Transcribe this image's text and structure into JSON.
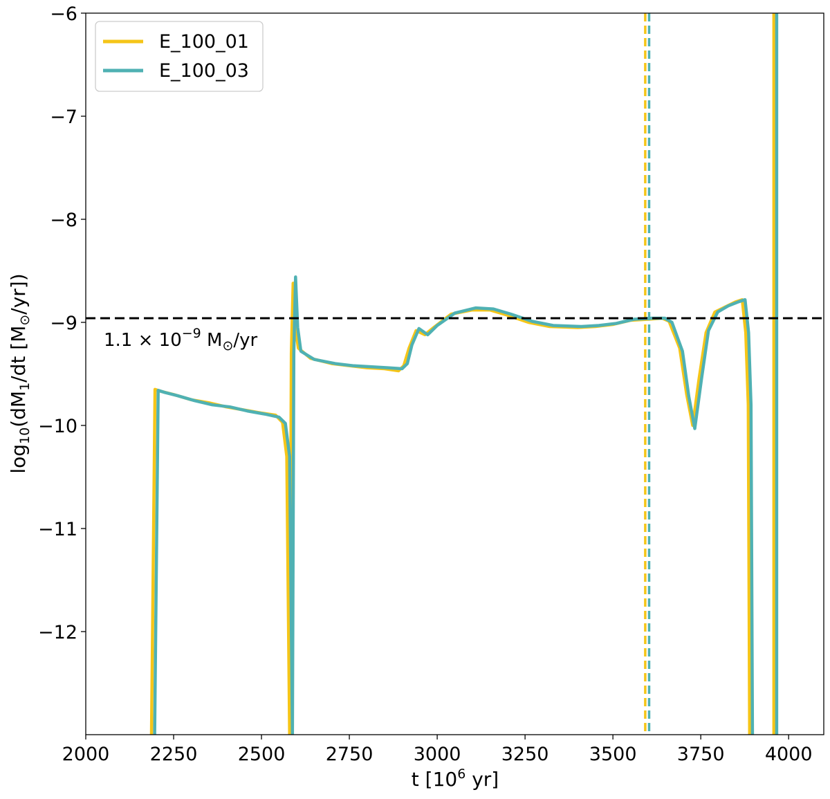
{
  "chart_data": {
    "type": "line",
    "xlabel_main": "t [10",
    "xlabel_sup": "6",
    "xlabel_tail": " yr]",
    "ylabel_main": "log",
    "ylabel_sub1": "10",
    "ylabel_mid1": "(dM",
    "ylabel_sub2": "1",
    "ylabel_mid2": "/dt [M",
    "ylabel_sub3": "⊙",
    "ylabel_tail": "/yr])",
    "xlim": [
      2000,
      4100
    ],
    "ylim": [
      -13.0,
      -6.0
    ],
    "xticks": [
      2000,
      2250,
      2500,
      2750,
      3000,
      3250,
      3500,
      3750,
      4000
    ],
    "xtick_labels": [
      "2000",
      "2250",
      "2500",
      "2750",
      "3000",
      "3250",
      "3500",
      "3750",
      "4000"
    ],
    "yticks": [
      -6,
      -7,
      -8,
      -9,
      -10,
      -11,
      -12
    ],
    "ytick_labels": [
      "−6",
      "−7",
      "−8",
      "−9",
      "−10",
      "−11",
      "−12"
    ],
    "grid": false,
    "legend_position": "top-left",
    "series": [
      {
        "name": "E_100_01",
        "color": "#f5c518",
        "points": [
          [
            2187,
            -13.0
          ],
          [
            2197,
            -9.65
          ],
          [
            2215,
            -9.67
          ],
          [
            2250,
            -9.7
          ],
          [
            2300,
            -9.75
          ],
          [
            2350,
            -9.78
          ],
          [
            2400,
            -9.82
          ],
          [
            2450,
            -9.85
          ],
          [
            2500,
            -9.88
          ],
          [
            2540,
            -9.9
          ],
          [
            2560,
            -9.97
          ],
          [
            2572,
            -10.3
          ],
          [
            2580,
            -13.0
          ],
          [
            2585,
            -9.3
          ],
          [
            2590,
            -8.62
          ],
          [
            2596,
            -9.05
          ],
          [
            2605,
            -9.25
          ],
          [
            2640,
            -9.35
          ],
          [
            2700,
            -9.4
          ],
          [
            2750,
            -9.42
          ],
          [
            2800,
            -9.44
          ],
          [
            2850,
            -9.45
          ],
          [
            2890,
            -9.47
          ],
          [
            2905,
            -9.42
          ],
          [
            2920,
            -9.25
          ],
          [
            2940,
            -9.08
          ],
          [
            2965,
            -9.12
          ],
          [
            2990,
            -9.05
          ],
          [
            3040,
            -8.92
          ],
          [
            3100,
            -8.88
          ],
          [
            3150,
            -8.88
          ],
          [
            3200,
            -8.93
          ],
          [
            3260,
            -9.0
          ],
          [
            3320,
            -9.04
          ],
          [
            3400,
            -9.05
          ],
          [
            3450,
            -9.04
          ],
          [
            3500,
            -9.02
          ],
          [
            3550,
            -8.98
          ],
          [
            3600,
            -8.97
          ],
          [
            3640,
            -8.96
          ],
          [
            3660,
            -8.99
          ],
          [
            3690,
            -9.25
          ],
          [
            3710,
            -9.7
          ],
          [
            3727,
            -10.0
          ],
          [
            3745,
            -9.55
          ],
          [
            3765,
            -9.1
          ],
          [
            3790,
            -8.9
          ],
          [
            3820,
            -8.85
          ],
          [
            3850,
            -8.8
          ],
          [
            3868,
            -8.78
          ],
          [
            3878,
            -9.1
          ],
          [
            3885,
            -9.8
          ],
          [
            3889,
            -13.0
          ]
        ],
        "vertical_solid_x": 3958,
        "vertical_dashed_x": 3592
      },
      {
        "name": "E_100_03",
        "color": "#4fb1b3",
        "points": [
          [
            2196,
            -13.0
          ],
          [
            2206,
            -9.66
          ],
          [
            2225,
            -9.68
          ],
          [
            2260,
            -9.71
          ],
          [
            2310,
            -9.76
          ],
          [
            2360,
            -9.8
          ],
          [
            2410,
            -9.82
          ],
          [
            2460,
            -9.86
          ],
          [
            2510,
            -9.89
          ],
          [
            2550,
            -9.92
          ],
          [
            2568,
            -9.98
          ],
          [
            2580,
            -10.3
          ],
          [
            2588,
            -13.0
          ],
          [
            2592,
            -9.3
          ],
          [
            2597,
            -8.56
          ],
          [
            2603,
            -9.05
          ],
          [
            2612,
            -9.28
          ],
          [
            2650,
            -9.36
          ],
          [
            2710,
            -9.4
          ],
          [
            2760,
            -9.42
          ],
          [
            2810,
            -9.43
          ],
          [
            2860,
            -9.44
          ],
          [
            2900,
            -9.45
          ],
          [
            2915,
            -9.4
          ],
          [
            2928,
            -9.22
          ],
          [
            2948,
            -9.06
          ],
          [
            2973,
            -9.12
          ],
          [
            3000,
            -9.03
          ],
          [
            3050,
            -8.91
          ],
          [
            3110,
            -8.86
          ],
          [
            3160,
            -8.87
          ],
          [
            3210,
            -8.92
          ],
          [
            3270,
            -8.99
          ],
          [
            3330,
            -9.03
          ],
          [
            3410,
            -9.04
          ],
          [
            3460,
            -9.03
          ],
          [
            3510,
            -9.01
          ],
          [
            3560,
            -8.97
          ],
          [
            3610,
            -8.96
          ],
          [
            3648,
            -8.96
          ],
          [
            3668,
            -9.0
          ],
          [
            3698,
            -9.28
          ],
          [
            3716,
            -9.72
          ],
          [
            3733,
            -10.03
          ],
          [
            3752,
            -9.55
          ],
          [
            3772,
            -9.08
          ],
          [
            3798,
            -8.9
          ],
          [
            3828,
            -8.84
          ],
          [
            3858,
            -8.8
          ],
          [
            3876,
            -8.78
          ],
          [
            3886,
            -9.1
          ],
          [
            3893,
            -9.8
          ],
          [
            3897,
            -13.0
          ]
        ],
        "vertical_solid_x": 3966,
        "vertical_dashed_x": 3603
      }
    ],
    "reference_line": {
      "y": -8.96,
      "style": "dashed",
      "color": "#000000"
    },
    "annotation": {
      "base": "1.1 × 10",
      "sup": "−9",
      "unit_main": " M",
      "unit_sub": "⊙",
      "unit_tail": "/yr"
    }
  }
}
